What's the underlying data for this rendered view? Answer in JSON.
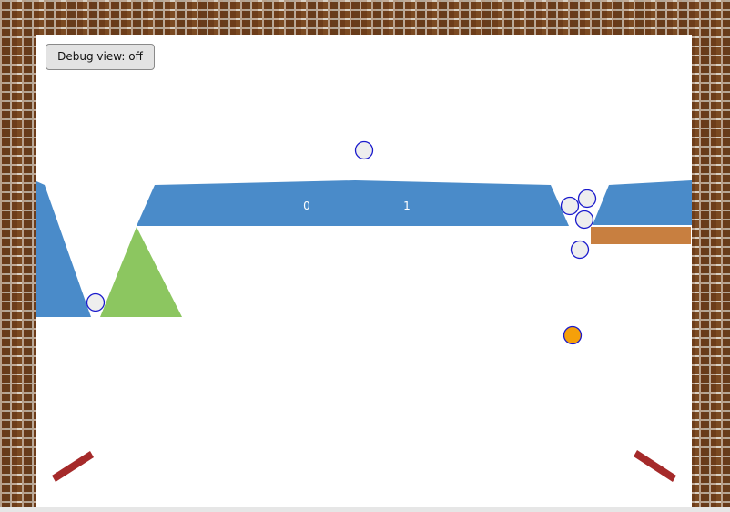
{
  "controls": {
    "debug_button_label": "Debug view: off"
  },
  "track": {
    "segment_labels": [
      "0",
      "1"
    ]
  },
  "colors": {
    "track": "#4a8bc9",
    "triangle": "#8cc660",
    "platform": "#c87f40",
    "flipper": "#a52a2a",
    "ball_fill": "#eeeeee",
    "ball_stroke": "#1a1acc",
    "active_ball_fill": "#f5a00a"
  },
  "balls": {
    "count": 7,
    "active_count": 1
  }
}
